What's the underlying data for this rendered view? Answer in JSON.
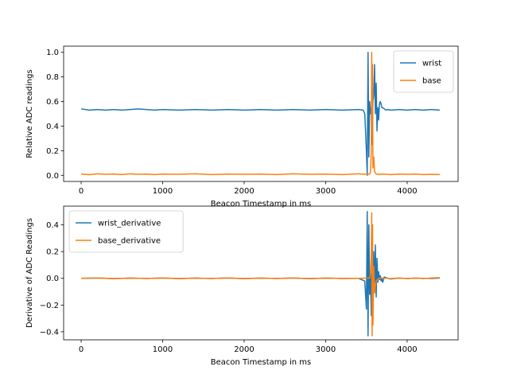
{
  "chart_data": [
    {
      "type": "line",
      "xlabel": "Beacon Timestamp in ms",
      "ylabel": "Relative ADC readings",
      "xlim": [
        -215,
        4625
      ],
      "ylim": [
        -0.05,
        1.05
      ],
      "xticks": [
        0,
        1000,
        2000,
        3000,
        4000
      ],
      "yticks": [
        0.0,
        0.2,
        0.4,
        0.6,
        0.8,
        1.0
      ],
      "ytick_labels": [
        "0.0",
        "0.2",
        "0.4",
        "0.6",
        "0.8",
        "1.0"
      ],
      "legend_position": "top-right",
      "series": [
        {
          "name": "wrist",
          "color": "#1f77b4",
          "x": [
            0,
            100,
            200,
            300,
            400,
            500,
            600,
            700,
            800,
            900,
            1000,
            1200,
            1400,
            1600,
            1800,
            2000,
            2200,
            2400,
            2600,
            2800,
            3000,
            3200,
            3400,
            3460,
            3480,
            3500,
            3510,
            3520,
            3530,
            3540,
            3550,
            3560,
            3570,
            3580,
            3590,
            3600,
            3610,
            3620,
            3630,
            3640,
            3650,
            3660,
            3670,
            3680,
            3690,
            3700,
            3720,
            3740,
            3760,
            3800,
            3900,
            4000,
            4100,
            4200,
            4300,
            4400
          ],
          "values": [
            0.54,
            0.53,
            0.535,
            0.53,
            0.535,
            0.53,
            0.535,
            0.54,
            0.535,
            0.53,
            0.535,
            0.53,
            0.535,
            0.53,
            0.535,
            0.53,
            0.535,
            0.53,
            0.535,
            0.53,
            0.535,
            0.53,
            0.535,
            0.53,
            0.5,
            0.2,
            0.0,
            1.0,
            0.15,
            0.6,
            0.5,
            0.55,
            0.25,
            0.6,
            0.65,
            0.9,
            0.5,
            0.75,
            0.36,
            0.55,
            0.45,
            0.58,
            0.6,
            0.58,
            0.55,
            0.55,
            0.54,
            0.53,
            0.535,
            0.53,
            0.535,
            0.53,
            0.535,
            0.53,
            0.535,
            0.53
          ]
        },
        {
          "name": "base",
          "color": "#ff7f0e",
          "x": [
            0,
            100,
            200,
            300,
            400,
            500,
            600,
            700,
            800,
            900,
            1000,
            1200,
            1400,
            1600,
            1800,
            2000,
            2200,
            2400,
            2600,
            2800,
            3000,
            3200,
            3400,
            3500,
            3540,
            3550,
            3560,
            3565,
            3570,
            3575,
            3580,
            3590,
            3600,
            3620,
            3650,
            3700,
            3800,
            3900,
            4000,
            4100,
            4200,
            4300,
            4400
          ],
          "values": [
            0.01,
            0.005,
            0.012,
            0.008,
            0.01,
            0.006,
            0.012,
            0.008,
            0.01,
            0.006,
            0.01,
            0.008,
            0.012,
            0.006,
            0.01,
            0.008,
            0.01,
            0.006,
            0.012,
            0.008,
            0.01,
            0.006,
            0.012,
            0.008,
            0.01,
            0.03,
            0.2,
            1.0,
            0.5,
            0.9,
            0.06,
            0.15,
            0.03,
            0.01,
            0.008,
            0.01,
            0.006,
            0.01,
            0.008,
            0.01,
            0.006,
            0.008,
            0.006
          ]
        }
      ]
    },
    {
      "type": "line",
      "xlabel": "Beacon Timestamp in ms",
      "ylabel": "Derivative of ADC Readings",
      "xlim": [
        -215,
        4625
      ],
      "ylim": [
        -0.46,
        0.54
      ],
      "xticks": [
        0,
        1000,
        2000,
        3000,
        4000
      ],
      "yticks": [
        -0.4,
        -0.2,
        0.0,
        0.2,
        0.4
      ],
      "ytick_labels": [
        "−0.4",
        "−0.2",
        "0.0",
        "0.2",
        "0.4"
      ],
      "legend_position": "top-left",
      "series": [
        {
          "name": "wrist_derivative",
          "color": "#1f77b4",
          "x": [
            0,
            200,
            400,
            600,
            800,
            1000,
            1200,
            1400,
            1600,
            1800,
            2000,
            2200,
            2400,
            2600,
            2800,
            3000,
            3200,
            3400,
            3480,
            3500,
            3510,
            3520,
            3530,
            3540,
            3550,
            3560,
            3570,
            3580,
            3590,
            3600,
            3610,
            3620,
            3630,
            3640,
            3650,
            3660,
            3670,
            3680,
            3690,
            3700,
            3720,
            3760,
            3800,
            3900,
            4000,
            4100,
            4200,
            4300,
            4400
          ],
          "values": [
            0.0,
            0.002,
            -0.002,
            0.001,
            -0.001,
            0.002,
            -0.002,
            0.001,
            -0.001,
            0.002,
            -0.002,
            0.001,
            -0.001,
            0.002,
            -0.002,
            0.001,
            -0.001,
            0.0,
            -0.02,
            -0.23,
            0.5,
            -0.43,
            0.4,
            -0.12,
            0.04,
            -0.28,
            0.3,
            0.05,
            0.2,
            -0.1,
            0.25,
            -0.14,
            0.15,
            -0.03,
            0.05,
            -0.01,
            0.02,
            -0.02,
            0.0,
            -0.03,
            0.01,
            0.0,
            -0.005,
            0.002,
            -0.002,
            0.001,
            0.0,
            -0.001,
            0.002
          ]
        },
        {
          "name": "base_derivative",
          "color": "#ff7f0e",
          "x": [
            0,
            200,
            400,
            600,
            800,
            1000,
            1200,
            1400,
            1600,
            1800,
            2000,
            2200,
            2400,
            2600,
            2800,
            3000,
            3200,
            3400,
            3540,
            3550,
            3560,
            3565,
            3570,
            3575,
            3580,
            3590,
            3600,
            3620,
            3650,
            3700,
            3800,
            3900,
            4000,
            4100,
            4200,
            4300,
            4400
          ],
          "values": [
            0.0,
            0.003,
            -0.003,
            0.002,
            -0.002,
            0.003,
            -0.003,
            0.002,
            -0.002,
            0.003,
            -0.003,
            0.002,
            -0.002,
            0.003,
            -0.003,
            0.002,
            -0.002,
            0.0,
            0.002,
            0.03,
            0.18,
            0.49,
            -0.43,
            0.4,
            -0.35,
            0.09,
            -0.11,
            -0.02,
            0.0,
            0.003,
            -0.002,
            0.002,
            -0.002,
            0.002,
            -0.002,
            0.003,
            0.005
          ]
        }
      ]
    }
  ]
}
